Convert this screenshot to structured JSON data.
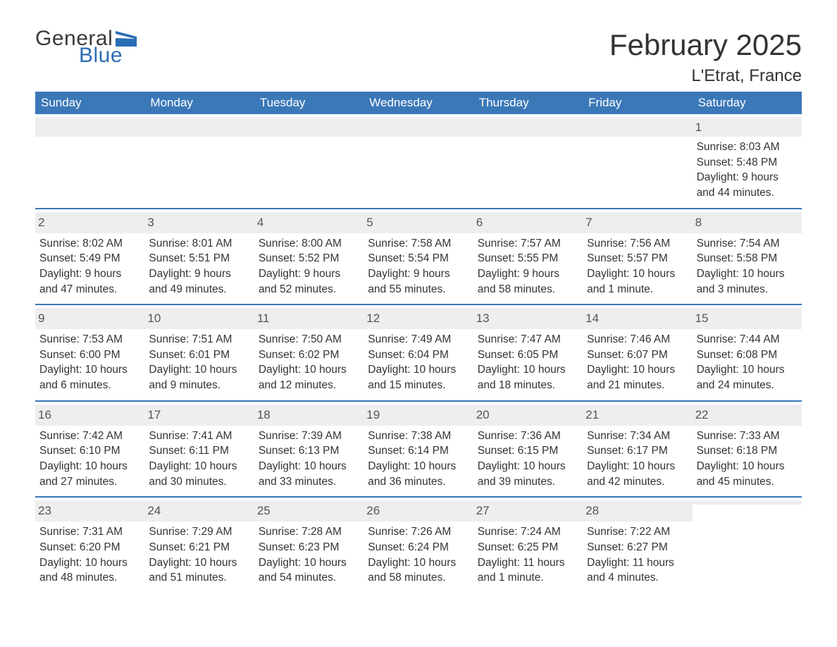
{
  "logo": {
    "text_general": "General",
    "text_blue": "Blue"
  },
  "title": "February 2025",
  "location": "L'Etrat, France",
  "colors": {
    "header_bg": "#3b78b8",
    "header_text": "#ffffff",
    "week_border": "#3b78b8",
    "daynum_bg": "#eeeeee",
    "body_text": "#333333",
    "logo_blue": "#2a6db5",
    "logo_gray": "#3a3a3a"
  },
  "weekdays": [
    "Sunday",
    "Monday",
    "Tuesday",
    "Wednesday",
    "Thursday",
    "Friday",
    "Saturday"
  ],
  "weeks": [
    [
      {
        "day": ""
      },
      {
        "day": ""
      },
      {
        "day": ""
      },
      {
        "day": ""
      },
      {
        "day": ""
      },
      {
        "day": ""
      },
      {
        "day": "1",
        "sunrise": "Sunrise: 8:03 AM",
        "sunset": "Sunset: 5:48 PM",
        "daylight": "Daylight: 9 hours and 44 minutes."
      }
    ],
    [
      {
        "day": "2",
        "sunrise": "Sunrise: 8:02 AM",
        "sunset": "Sunset: 5:49 PM",
        "daylight": "Daylight: 9 hours and 47 minutes."
      },
      {
        "day": "3",
        "sunrise": "Sunrise: 8:01 AM",
        "sunset": "Sunset: 5:51 PM",
        "daylight": "Daylight: 9 hours and 49 minutes."
      },
      {
        "day": "4",
        "sunrise": "Sunrise: 8:00 AM",
        "sunset": "Sunset: 5:52 PM",
        "daylight": "Daylight: 9 hours and 52 minutes."
      },
      {
        "day": "5",
        "sunrise": "Sunrise: 7:58 AM",
        "sunset": "Sunset: 5:54 PM",
        "daylight": "Daylight: 9 hours and 55 minutes."
      },
      {
        "day": "6",
        "sunrise": "Sunrise: 7:57 AM",
        "sunset": "Sunset: 5:55 PM",
        "daylight": "Daylight: 9 hours and 58 minutes."
      },
      {
        "day": "7",
        "sunrise": "Sunrise: 7:56 AM",
        "sunset": "Sunset: 5:57 PM",
        "daylight": "Daylight: 10 hours and 1 minute."
      },
      {
        "day": "8",
        "sunrise": "Sunrise: 7:54 AM",
        "sunset": "Sunset: 5:58 PM",
        "daylight": "Daylight: 10 hours and 3 minutes."
      }
    ],
    [
      {
        "day": "9",
        "sunrise": "Sunrise: 7:53 AM",
        "sunset": "Sunset: 6:00 PM",
        "daylight": "Daylight: 10 hours and 6 minutes."
      },
      {
        "day": "10",
        "sunrise": "Sunrise: 7:51 AM",
        "sunset": "Sunset: 6:01 PM",
        "daylight": "Daylight: 10 hours and 9 minutes."
      },
      {
        "day": "11",
        "sunrise": "Sunrise: 7:50 AM",
        "sunset": "Sunset: 6:02 PM",
        "daylight": "Daylight: 10 hours and 12 minutes."
      },
      {
        "day": "12",
        "sunrise": "Sunrise: 7:49 AM",
        "sunset": "Sunset: 6:04 PM",
        "daylight": "Daylight: 10 hours and 15 minutes."
      },
      {
        "day": "13",
        "sunrise": "Sunrise: 7:47 AM",
        "sunset": "Sunset: 6:05 PM",
        "daylight": "Daylight: 10 hours and 18 minutes."
      },
      {
        "day": "14",
        "sunrise": "Sunrise: 7:46 AM",
        "sunset": "Sunset: 6:07 PM",
        "daylight": "Daylight: 10 hours and 21 minutes."
      },
      {
        "day": "15",
        "sunrise": "Sunrise: 7:44 AM",
        "sunset": "Sunset: 6:08 PM",
        "daylight": "Daylight: 10 hours and 24 minutes."
      }
    ],
    [
      {
        "day": "16",
        "sunrise": "Sunrise: 7:42 AM",
        "sunset": "Sunset: 6:10 PM",
        "daylight": "Daylight: 10 hours and 27 minutes."
      },
      {
        "day": "17",
        "sunrise": "Sunrise: 7:41 AM",
        "sunset": "Sunset: 6:11 PM",
        "daylight": "Daylight: 10 hours and 30 minutes."
      },
      {
        "day": "18",
        "sunrise": "Sunrise: 7:39 AM",
        "sunset": "Sunset: 6:13 PM",
        "daylight": "Daylight: 10 hours and 33 minutes."
      },
      {
        "day": "19",
        "sunrise": "Sunrise: 7:38 AM",
        "sunset": "Sunset: 6:14 PM",
        "daylight": "Daylight: 10 hours and 36 minutes."
      },
      {
        "day": "20",
        "sunrise": "Sunrise: 7:36 AM",
        "sunset": "Sunset: 6:15 PM",
        "daylight": "Daylight: 10 hours and 39 minutes."
      },
      {
        "day": "21",
        "sunrise": "Sunrise: 7:34 AM",
        "sunset": "Sunset: 6:17 PM",
        "daylight": "Daylight: 10 hours and 42 minutes."
      },
      {
        "day": "22",
        "sunrise": "Sunrise: 7:33 AM",
        "sunset": "Sunset: 6:18 PM",
        "daylight": "Daylight: 10 hours and 45 minutes."
      }
    ],
    [
      {
        "day": "23",
        "sunrise": "Sunrise: 7:31 AM",
        "sunset": "Sunset: 6:20 PM",
        "daylight": "Daylight: 10 hours and 48 minutes."
      },
      {
        "day": "24",
        "sunrise": "Sunrise: 7:29 AM",
        "sunset": "Sunset: 6:21 PM",
        "daylight": "Daylight: 10 hours and 51 minutes."
      },
      {
        "day": "25",
        "sunrise": "Sunrise: 7:28 AM",
        "sunset": "Sunset: 6:23 PM",
        "daylight": "Daylight: 10 hours and 54 minutes."
      },
      {
        "day": "26",
        "sunrise": "Sunrise: 7:26 AM",
        "sunset": "Sunset: 6:24 PM",
        "daylight": "Daylight: 10 hours and 58 minutes."
      },
      {
        "day": "27",
        "sunrise": "Sunrise: 7:24 AM",
        "sunset": "Sunset: 6:25 PM",
        "daylight": "Daylight: 11 hours and 1 minute."
      },
      {
        "day": "28",
        "sunrise": "Sunrise: 7:22 AM",
        "sunset": "Sunset: 6:27 PM",
        "daylight": "Daylight: 11 hours and 4 minutes."
      },
      {
        "day": ""
      }
    ]
  ]
}
